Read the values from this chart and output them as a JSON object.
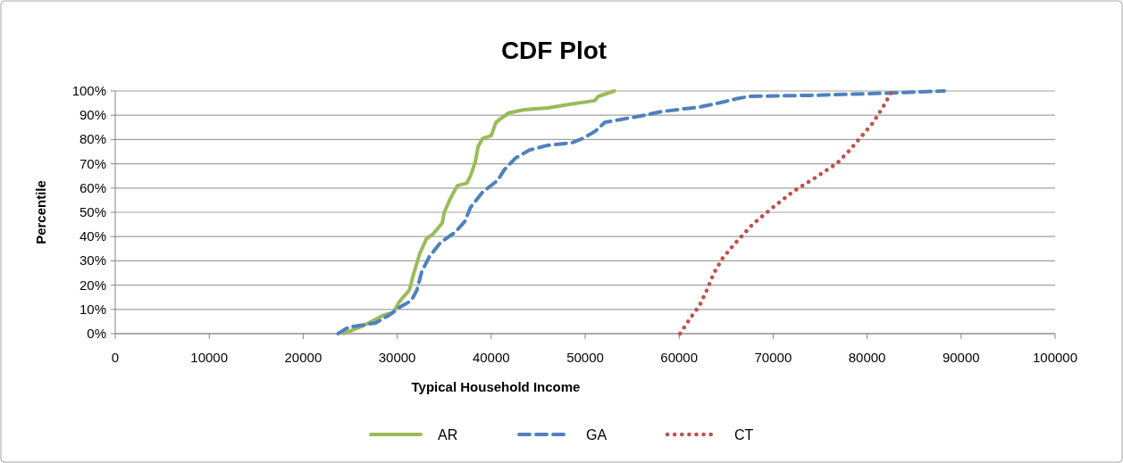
{
  "chart_data": {
    "type": "line",
    "title": "CDF Plot",
    "xlabel": "Typical Household Income",
    "ylabel": "Percentile",
    "xlim": [
      0,
      100000
    ],
    "xticks": [
      0,
      10000,
      20000,
      30000,
      40000,
      50000,
      60000,
      70000,
      80000,
      90000,
      100000
    ],
    "ylim": [
      0,
      100
    ],
    "yticks": [
      {
        "value": 0,
        "label": "0%"
      },
      {
        "value": 10,
        "label": "10%"
      },
      {
        "value": 20,
        "label": "20%"
      },
      {
        "value": 30,
        "label": "30%"
      },
      {
        "value": 40,
        "label": "40%"
      },
      {
        "value": 50,
        "label": "50%"
      },
      {
        "value": 60,
        "label": "60%"
      },
      {
        "value": 70,
        "label": "70%"
      },
      {
        "value": 80,
        "label": "80%"
      },
      {
        "value": 90,
        "label": "90%"
      },
      {
        "value": 100,
        "label": "100%"
      }
    ],
    "grid": "y",
    "legend": "bottom",
    "series": [
      {
        "name": "AR",
        "color": "#9bbb59",
        "line_style": "solid",
        "x": [
          24300,
          26400,
          28600,
          29600,
          30200,
          31300,
          31700,
          32400,
          33100,
          33800,
          34800,
          35000,
          35700,
          36400,
          37400,
          37800,
          38300,
          38600,
          39100,
          40000,
          40500,
          41000,
          41900,
          43500,
          46000,
          48300,
          51000,
          51400,
          53100
        ],
        "values": [
          0,
          3.3,
          7.7,
          8.8,
          13,
          18,
          24,
          33,
          39,
          41,
          45.6,
          50,
          56,
          61,
          62,
          65,
          70.6,
          77,
          80.5,
          81.6,
          87,
          88.6,
          91,
          92.3,
          93,
          94.5,
          96,
          97.8,
          100
        ]
      },
      {
        "name": "GA",
        "color": "#4f81bd",
        "line_style": "dashed",
        "x": [
          23700,
          24800,
          27700,
          29300,
          30200,
          31500,
          32100,
          32600,
          33400,
          34600,
          36200,
          37200,
          37800,
          39100,
          40700,
          41400,
          42600,
          44100,
          46000,
          48600,
          49800,
          51100,
          52100,
          55900,
          58100,
          62200,
          64400,
          66300,
          67600,
          74000,
          80200,
          83500,
          88200
        ],
        "values": [
          0,
          2.6,
          4.4,
          8,
          10.7,
          13.6,
          18,
          25.4,
          31.6,
          37.5,
          41.9,
          46.3,
          52,
          58.4,
          63.2,
          67.6,
          72.4,
          75.7,
          77.6,
          78.7,
          80.5,
          83.5,
          87.1,
          89.7,
          91.5,
          93.4,
          95.2,
          97,
          97.8,
          98.2,
          98.9,
          99.3,
          100
        ]
      },
      {
        "name": "CT",
        "color": "#c0504d",
        "line_style": "dotted",
        "x": [
          60100,
          61100,
          62200,
          63000,
          63700,
          64600,
          65900,
          67800,
          69900,
          72100,
          74500,
          76800,
          78100,
          79400,
          80600,
          81600,
          82500,
          82600
        ],
        "values": [
          0,
          5.9,
          11.8,
          18.4,
          25,
          31,
          37,
          45,
          51.8,
          58.5,
          64.3,
          70.2,
          75.4,
          81.3,
          86.8,
          92.8,
          98.9,
          100
        ]
      }
    ]
  }
}
